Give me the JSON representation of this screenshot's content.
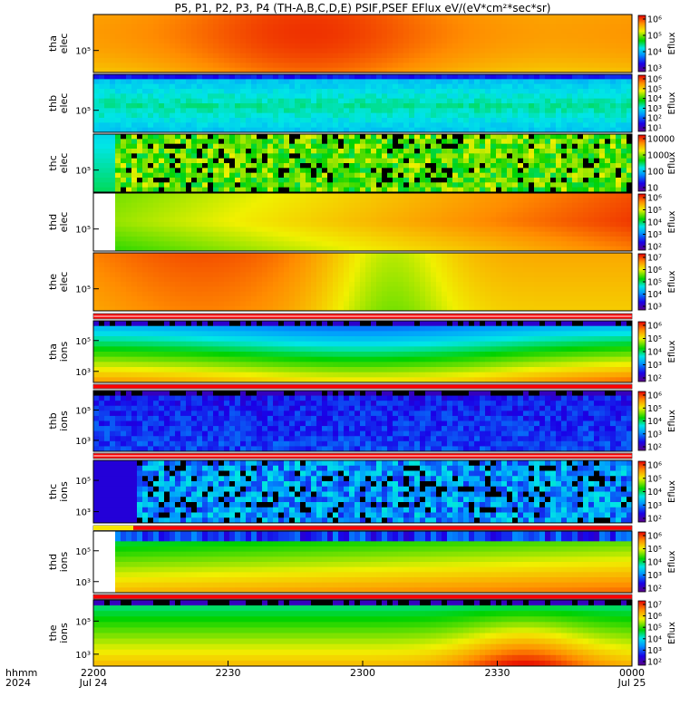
{
  "title": "P5, P1, P2, P3, P4 (TH-A,B,C,D,E) PSIF,PSEF EFlux eV/(eV*cm²*sec*sr)",
  "colorbar_label": "Eflux",
  "time_axis": {
    "row1_label": "hhmm",
    "row2_label": "2024",
    "ticks": [
      {
        "top": "2200",
        "bottom": "Jul 24"
      },
      {
        "top": "2230",
        "bottom": ""
      },
      {
        "top": "2300",
        "bottom": ""
      },
      {
        "top": "2330",
        "bottom": ""
      },
      {
        "top": "0000",
        "bottom": "Jul 25"
      }
    ]
  },
  "chart_data": {
    "type": "heatmap",
    "x_range": [
      "2024-07-24 22:00",
      "2024-07-25 00:00"
    ],
    "y_scale": "log",
    "panels": [
      {
        "name": "tha elec",
        "ylabel1": "tha",
        "ylabel2": "elec",
        "yticks": [
          "10⁵"
        ],
        "colorbar_ticks": [
          "10⁶",
          "10⁵",
          "10⁴",
          "10³"
        ],
        "dominant": "red-orange"
      },
      {
        "name": "thb elec",
        "ylabel1": "thb",
        "ylabel2": "elec",
        "yticks": [
          "10⁵"
        ],
        "colorbar_ticks": [
          "10⁶",
          "10⁵",
          "10⁴",
          "10³",
          "10²",
          "10¹"
        ],
        "dominant": "cyan-green"
      },
      {
        "name": "thc elec",
        "ylabel1": "thc",
        "ylabel2": "elec",
        "yticks": [
          "10⁵"
        ],
        "colorbar_ticks": [
          "10000",
          "1000",
          "100",
          "10"
        ],
        "dominant": "noisy green-yellow"
      },
      {
        "name": "thd elec",
        "ylabel1": "thd",
        "ylabel2": "elec",
        "yticks": [
          "10⁵"
        ],
        "colorbar_ticks": [
          "10⁶",
          "10⁵",
          "10⁴",
          "10³",
          "10²"
        ],
        "dominant": "yellow-red"
      },
      {
        "name": "the elec",
        "ylabel1": "the",
        "ylabel2": "elec",
        "yticks": [
          "10⁵"
        ],
        "colorbar_ticks": [
          "10⁷",
          "10⁶",
          "10⁵",
          "10⁴",
          "10³"
        ],
        "dominant": "red-yellow"
      },
      {
        "name": "tha ions",
        "ylabel1": "tha",
        "ylabel2": "ions",
        "yticks": [
          "10⁵",
          "10³"
        ],
        "colorbar_ticks": [
          "10⁶",
          "10⁵",
          "10⁴",
          "10³",
          "10²"
        ],
        "dominant": "blue-yellow"
      },
      {
        "name": "thb ions",
        "ylabel1": "thb",
        "ylabel2": "ions",
        "yticks": [
          "10⁵",
          "10³"
        ],
        "colorbar_ticks": [
          "10⁶",
          "10⁵",
          "10⁴",
          "10³",
          "10²"
        ],
        "dominant": "dark blue"
      },
      {
        "name": "thc ions",
        "ylabel1": "thc",
        "ylabel2": "ions",
        "yticks": [
          "10⁵",
          "10³"
        ],
        "colorbar_ticks": [
          "10⁶",
          "10⁵",
          "10⁴",
          "10³",
          "10²"
        ],
        "dominant": "noisy blue"
      },
      {
        "name": "thd ions",
        "ylabel1": "thd",
        "ylabel2": "ions",
        "yticks": [
          "10⁵",
          "10³"
        ],
        "colorbar_ticks": [
          "10⁶",
          "10⁵",
          "10⁴",
          "10³",
          "10²"
        ],
        "dominant": "green-yellow"
      },
      {
        "name": "the ions",
        "ylabel1": "the",
        "ylabel2": "ions",
        "yticks": [
          "10⁵",
          "10³"
        ],
        "colorbar_ticks": [
          "10⁷",
          "10⁶",
          "10⁵",
          "10⁴",
          "10³",
          "10²"
        ],
        "dominant": "yellow-orange"
      }
    ]
  }
}
